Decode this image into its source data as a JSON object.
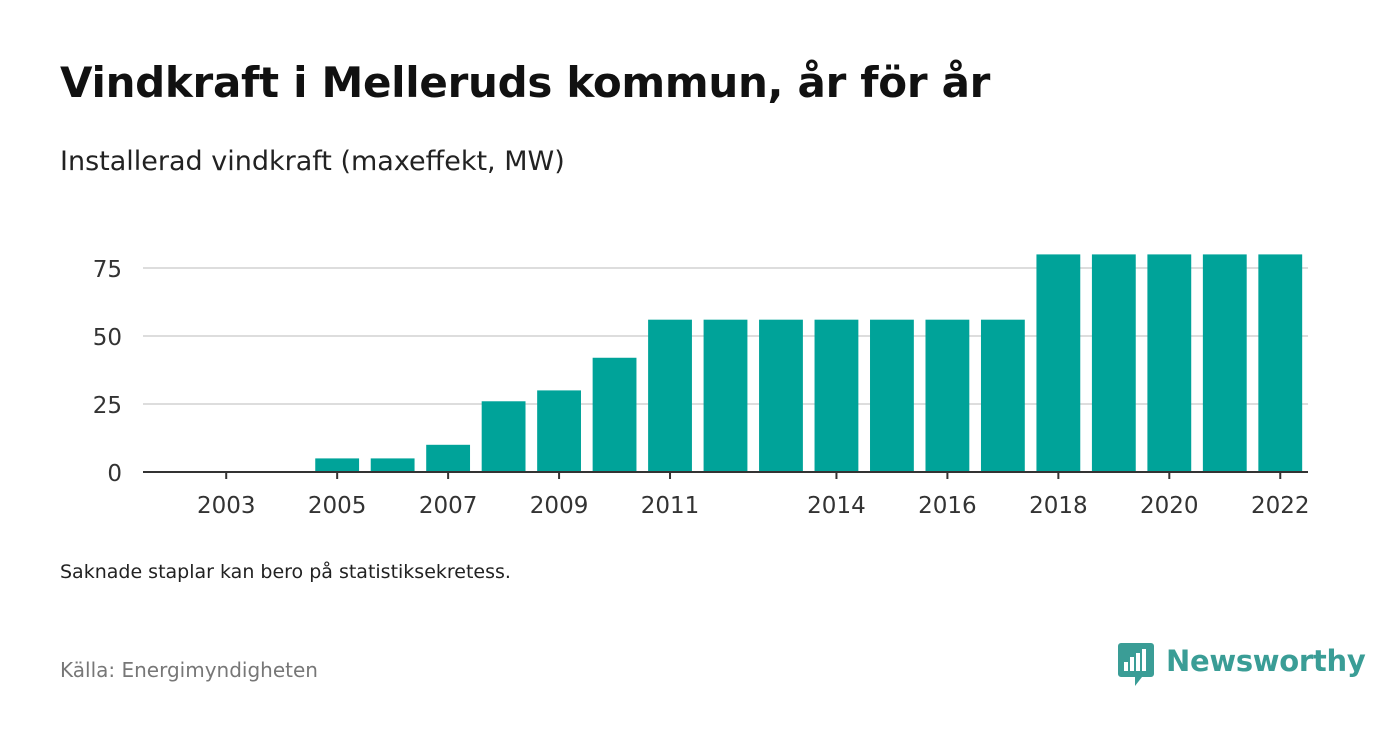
{
  "header": {
    "title": "Vindkraft i Melleruds kommun, år för år",
    "subtitle": "Installerad vindkraft (maxeffekt, MW)"
  },
  "footer": {
    "note": "Saknade staplar kan bero på statistiksekretess.",
    "source": "Källa: Energimyndigheten",
    "brand": "Newsworthy"
  },
  "colors": {
    "bar": "#00a399",
    "brand": "#3a9d96",
    "grid": "#dddddd",
    "axis": "#333333"
  },
  "icons": {
    "brand_logo": "bar-chart-speech-bubble-icon"
  },
  "chart_data": {
    "type": "bar",
    "title": "Vindkraft i Melleruds kommun, år för år",
    "subtitle": "Installerad vindkraft (maxeffekt, MW)",
    "categories": [
      "2002",
      "2003",
      "2004",
      "2005",
      "2006",
      "2007",
      "2008",
      "2009",
      "2010",
      "2011",
      "2012",
      "2013",
      "2014",
      "2015",
      "2016",
      "2017",
      "2018",
      "2019",
      "2020",
      "2021",
      "2022"
    ],
    "values": [
      0,
      0,
      0,
      5,
      5,
      10,
      26,
      30,
      42,
      56,
      56,
      56,
      56,
      56,
      56,
      56,
      80,
      80,
      80,
      80,
      80
    ],
    "x_tick_labels": [
      "2003",
      "2005",
      "2007",
      "2009",
      "2011",
      "2014",
      "2016",
      "2018",
      "2020",
      "2022"
    ],
    "y_ticks": [
      0,
      25,
      50,
      75
    ],
    "ylim": [
      0,
      80
    ],
    "grid": true,
    "legend": "none"
  }
}
